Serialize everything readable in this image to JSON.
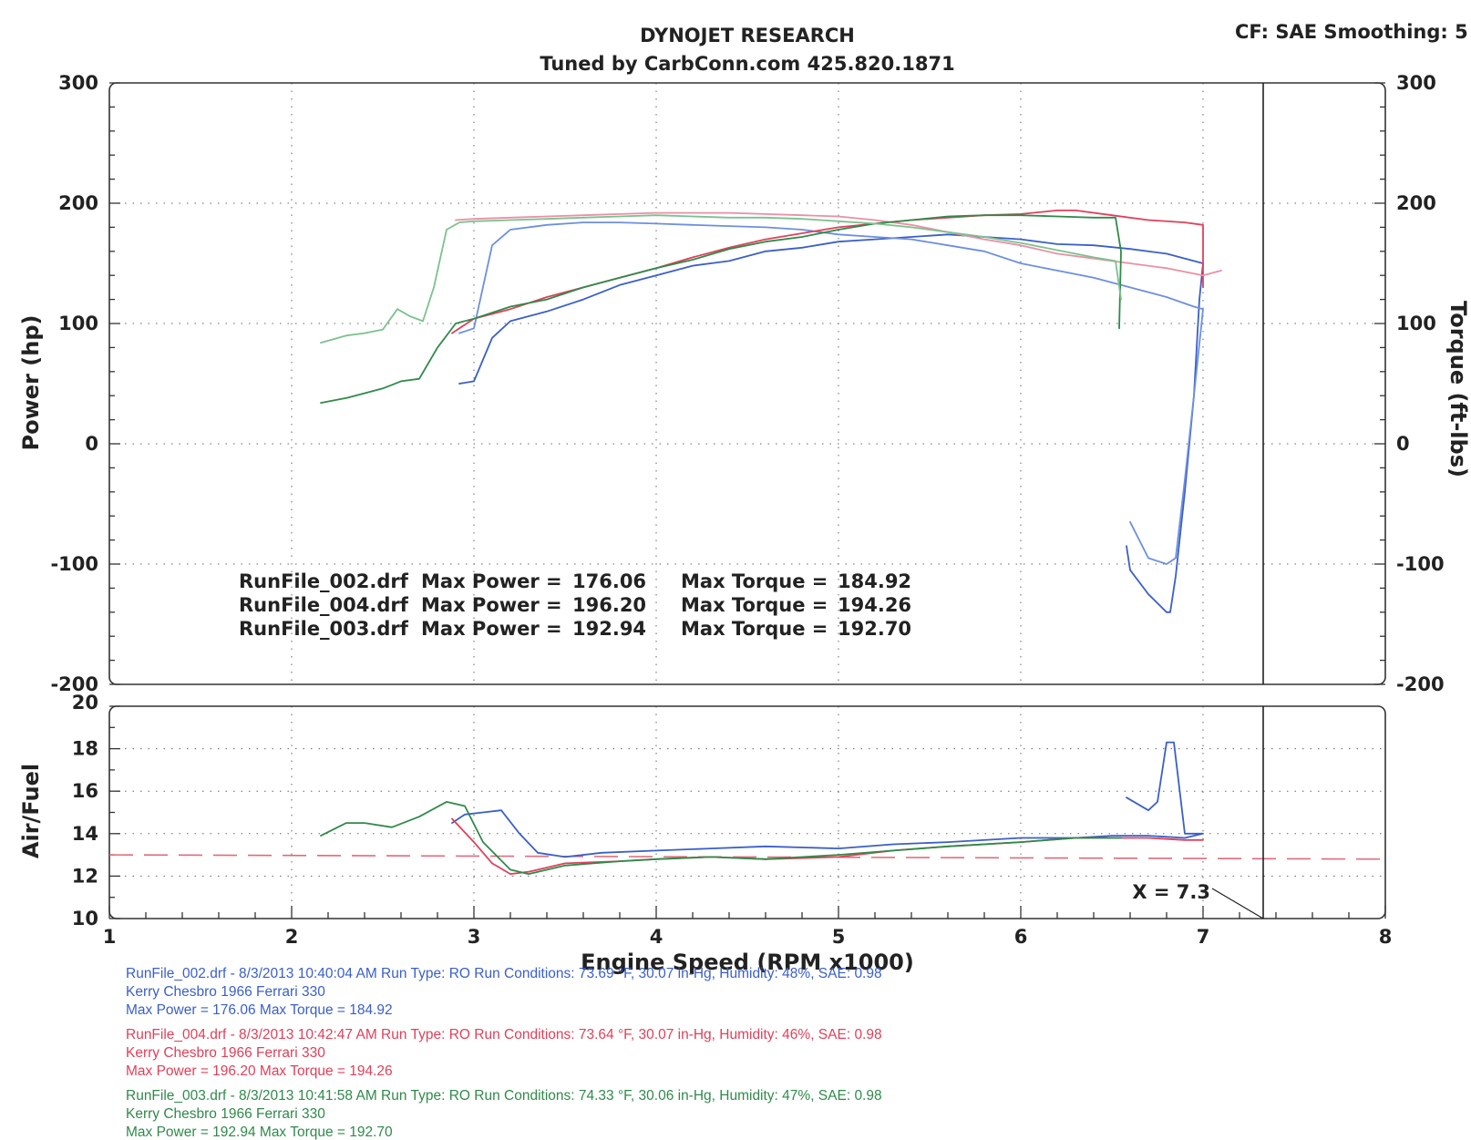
{
  "header": {
    "title": "DYNOJET RESEARCH",
    "subtitle": "Tuned by CarbConn.com 425.820.1871",
    "cf_info": "CF: SAE  Smoothing: 5"
  },
  "colors": {
    "run_002": "#3a5fc8",
    "run_004": "#e0405a",
    "run_003": "#2f8a4a",
    "run_002_light": "#6d8fe0",
    "run_004_light": "#ea8fa6",
    "run_003_light": "#7cc18e",
    "target_line": "#e06a7c"
  },
  "stats": [
    {
      "run": "RunFile_002.drf",
      "power_label": "Max Power =",
      "power": "176.06",
      "torque_label": "Max Torque =",
      "torque": "184.92"
    },
    {
      "run": "RunFile_004.drf",
      "power_label": "Max Power =",
      "power": "196.20",
      "torque_label": "Max Torque =",
      "torque": "194.26"
    },
    {
      "run": "RunFile_003.drf",
      "power_label": "Max Power =",
      "power": "192.94",
      "torque_label": "Max Torque =",
      "torque": "192.70"
    }
  ],
  "cursor_label": "X = 7.3",
  "footer": [
    {
      "color_key": "run_002",
      "line1": "RunFile_002.drf - 8/3/2013 10:40:04 AM  Run Type: RO  Run Conditions: 73.69 °F, 30.07 in-Hg,  Humidity:  48%, SAE: 0.98",
      "line2": "Kerry Chesbro 1966 Ferrari 330",
      "line3": "Max Power = 176.06  Max Torque = 184.92"
    },
    {
      "color_key": "run_004",
      "line1": "RunFile_004.drf - 8/3/2013 10:42:47 AM  Run Type: RO  Run Conditions: 73.64 °F, 30.07 in-Hg,  Humidity:  46%, SAE: 0.98",
      "line2": "Kerry Chesbro 1966 Ferrari 330",
      "line3": "Max Power = 196.20  Max Torque = 194.26"
    },
    {
      "color_key": "run_003",
      "line1": "RunFile_003.drf - 8/3/2013 10:41:58 AM  Run Type: RO  Run Conditions: 74.33 °F, 30.06 in-Hg,  Humidity:  47%, SAE: 0.98",
      "line2": "Kerry Chesbro 1966 Ferrari 330",
      "line3": "Max Power = 192.94  Max Torque = 192.70"
    }
  ],
  "chart_data": [
    {
      "type": "line",
      "panel": "power_torque",
      "title": "DYNOJET RESEARCH",
      "xlabel": "Engine Speed (RPM x1000)",
      "ylabel": "Power (hp)",
      "y2label": "Torque (ft-lbs)",
      "xlim": [
        1,
        8
      ],
      "ylim": [
        -200,
        300
      ],
      "y2lim": [
        -200,
        300
      ],
      "x_ticks": [
        "1",
        "2",
        "3",
        "4",
        "5",
        "6",
        "7",
        "8"
      ],
      "y_ticks": [
        "300",
        "200",
        "100",
        "0",
        "-100",
        "-200"
      ],
      "y2_ticks": [
        "300",
        "200",
        "100",
        "0",
        "-100",
        "-200"
      ],
      "grid": true,
      "cursor_x": 7.33,
      "series": [
        {
          "color_key": "run_002",
          "measure": "power",
          "x": [
            2.92,
            3.0,
            3.1,
            3.2,
            3.4,
            3.6,
            3.8,
            4.0,
            4.2,
            4.4,
            4.6,
            4.8,
            5.0,
            5.2,
            5.4,
            5.6,
            5.8,
            6.0,
            6.2,
            6.4,
            6.6,
            6.8,
            6.95,
            7.0,
            6.98,
            6.95,
            6.9,
            6.85,
            6.82,
            6.8,
            6.7,
            6.6,
            6.58
          ],
          "y": [
            50,
            52,
            88,
            102,
            110,
            120,
            132,
            140,
            148,
            152,
            160,
            163,
            168,
            170,
            172,
            174,
            172,
            170,
            166,
            165,
            162,
            158,
            152,
            150,
            120,
            40,
            -40,
            -110,
            -140,
            -140,
            -125,
            -105,
            -85
          ]
        },
        {
          "color_key": "run_002_light",
          "measure": "torque",
          "x": [
            2.92,
            3.0,
            3.1,
            3.2,
            3.4,
            3.6,
            3.8,
            4.0,
            4.2,
            4.4,
            4.6,
            4.8,
            5.0,
            5.2,
            5.4,
            5.6,
            5.8,
            6.0,
            6.2,
            6.4,
            6.6,
            6.8,
            6.95,
            7.0,
            6.95,
            6.9,
            6.85,
            6.8,
            6.7,
            6.6
          ],
          "y": [
            92,
            96,
            165,
            178,
            182,
            184,
            184,
            183,
            182,
            181,
            180,
            178,
            174,
            172,
            170,
            165,
            160,
            150,
            144,
            138,
            130,
            122,
            114,
            112,
            40,
            -30,
            -95,
            -100,
            -95,
            -65
          ]
        },
        {
          "color_key": "run_004",
          "measure": "power",
          "x": [
            2.88,
            3.0,
            3.2,
            3.4,
            3.6,
            3.8,
            4.0,
            4.2,
            4.4,
            4.6,
            4.8,
            5.0,
            5.2,
            5.4,
            5.6,
            5.8,
            6.0,
            6.2,
            6.3,
            6.5,
            6.7,
            6.9,
            7.0,
            7.0
          ],
          "y": [
            92,
            104,
            112,
            122,
            130,
            138,
            146,
            155,
            163,
            170,
            175,
            180,
            183,
            186,
            188,
            190,
            191,
            194,
            194,
            190,
            186,
            184,
            182,
            130
          ]
        },
        {
          "color_key": "run_004_light",
          "measure": "torque",
          "x": [
            2.9,
            3.0,
            3.2,
            3.4,
            3.6,
            3.8,
            4.0,
            4.2,
            4.4,
            4.6,
            4.8,
            5.0,
            5.2,
            5.4,
            5.6,
            5.8,
            6.0,
            6.2,
            6.4,
            6.6,
            6.8,
            7.0,
            7.1
          ],
          "y": [
            186,
            187,
            188,
            189,
            190,
            191,
            192,
            192,
            192,
            191,
            190,
            189,
            186,
            182,
            176,
            170,
            165,
            158,
            154,
            150,
            146,
            140,
            144
          ]
        },
        {
          "color_key": "run_003",
          "measure": "power",
          "x": [
            2.16,
            2.3,
            2.5,
            2.6,
            2.7,
            2.8,
            2.9,
            3.0,
            3.2,
            3.4,
            3.6,
            3.8,
            4.0,
            4.2,
            4.4,
            4.6,
            4.8,
            5.0,
            5.2,
            5.4,
            5.6,
            5.8,
            6.0,
            6.2,
            6.4,
            6.52,
            6.55,
            6.54
          ],
          "y": [
            34,
            38,
            46,
            52,
            54,
            80,
            100,
            104,
            114,
            120,
            130,
            138,
            146,
            153,
            162,
            168,
            172,
            178,
            183,
            186,
            189,
            190,
            190,
            189,
            188,
            188,
            160,
            96
          ]
        },
        {
          "color_key": "run_003_light",
          "measure": "torque",
          "x": [
            2.16,
            2.3,
            2.4,
            2.5,
            2.58,
            2.65,
            2.72,
            2.78,
            2.85,
            2.92,
            3.0,
            3.2,
            3.4,
            3.6,
            3.8,
            4.0,
            4.2,
            4.4,
            4.6,
            4.8,
            5.0,
            5.2,
            5.4,
            5.6,
            5.8,
            6.0,
            6.2,
            6.4,
            6.52,
            6.55
          ],
          "y": [
            84,
            90,
            92,
            95,
            112,
            106,
            102,
            130,
            178,
            184,
            185,
            186,
            187,
            188,
            189,
            190,
            189,
            188,
            188,
            187,
            185,
            183,
            180,
            176,
            172,
            167,
            161,
            155,
            152,
            120
          ]
        }
      ]
    },
    {
      "type": "line",
      "panel": "air_fuel",
      "xlabel": "Engine Speed (RPM x1000)",
      "ylabel": "Air/Fuel",
      "xlim": [
        1,
        8
      ],
      "ylim": [
        10,
        20
      ],
      "x_ticks": [
        "1",
        "2",
        "3",
        "4",
        "5",
        "6",
        "7",
        "8"
      ],
      "y_ticks": [
        "20",
        "18",
        "16",
        "14",
        "12",
        "10"
      ],
      "grid": true,
      "cursor_x": 7.33,
      "target_line": {
        "x": [
          1,
          8
        ],
        "y": [
          13.0,
          12.8
        ]
      },
      "series": [
        {
          "color_key": "run_002",
          "x": [
            2.88,
            2.95,
            3.05,
            3.15,
            3.25,
            3.35,
            3.5,
            3.7,
            4.0,
            4.3,
            4.6,
            5.0,
            5.3,
            5.6,
            6.0,
            6.3,
            6.5,
            6.7,
            6.9,
            7.0,
            6.9,
            6.84,
            6.8,
            6.75,
            6.7,
            6.58
          ],
          "y": [
            14.5,
            14.9,
            15.0,
            15.1,
            14.0,
            13.1,
            12.9,
            13.1,
            13.2,
            13.3,
            13.4,
            13.3,
            13.5,
            13.6,
            13.8,
            13.8,
            13.9,
            13.9,
            13.8,
            14.0,
            14.0,
            18.3,
            18.3,
            15.5,
            15.1,
            15.7
          ]
        },
        {
          "color_key": "run_004",
          "x": [
            2.88,
            3.0,
            3.1,
            3.2,
            3.3,
            3.5,
            3.8,
            4.0,
            4.3,
            4.6,
            5.0,
            5.3,
            5.6,
            6.0,
            6.3,
            6.5,
            6.7,
            6.9,
            7.0
          ],
          "y": [
            14.7,
            13.6,
            12.6,
            12.1,
            12.2,
            12.6,
            12.7,
            12.8,
            12.9,
            12.8,
            12.9,
            13.2,
            13.4,
            13.6,
            13.8,
            13.8,
            13.8,
            13.7,
            13.7
          ]
        },
        {
          "color_key": "run_003",
          "x": [
            2.16,
            2.3,
            2.4,
            2.55,
            2.7,
            2.85,
            2.95,
            3.05,
            3.2,
            3.3,
            3.5,
            3.8,
            4.0,
            4.3,
            4.6,
            5.0,
            5.3,
            5.6,
            6.0,
            6.3,
            6.5,
            6.55
          ],
          "y": [
            13.9,
            14.5,
            14.5,
            14.3,
            14.8,
            15.5,
            15.3,
            13.6,
            12.3,
            12.1,
            12.5,
            12.7,
            12.8,
            12.9,
            12.8,
            13.0,
            13.2,
            13.4,
            13.6,
            13.8,
            13.8,
            13.8
          ]
        }
      ]
    }
  ]
}
